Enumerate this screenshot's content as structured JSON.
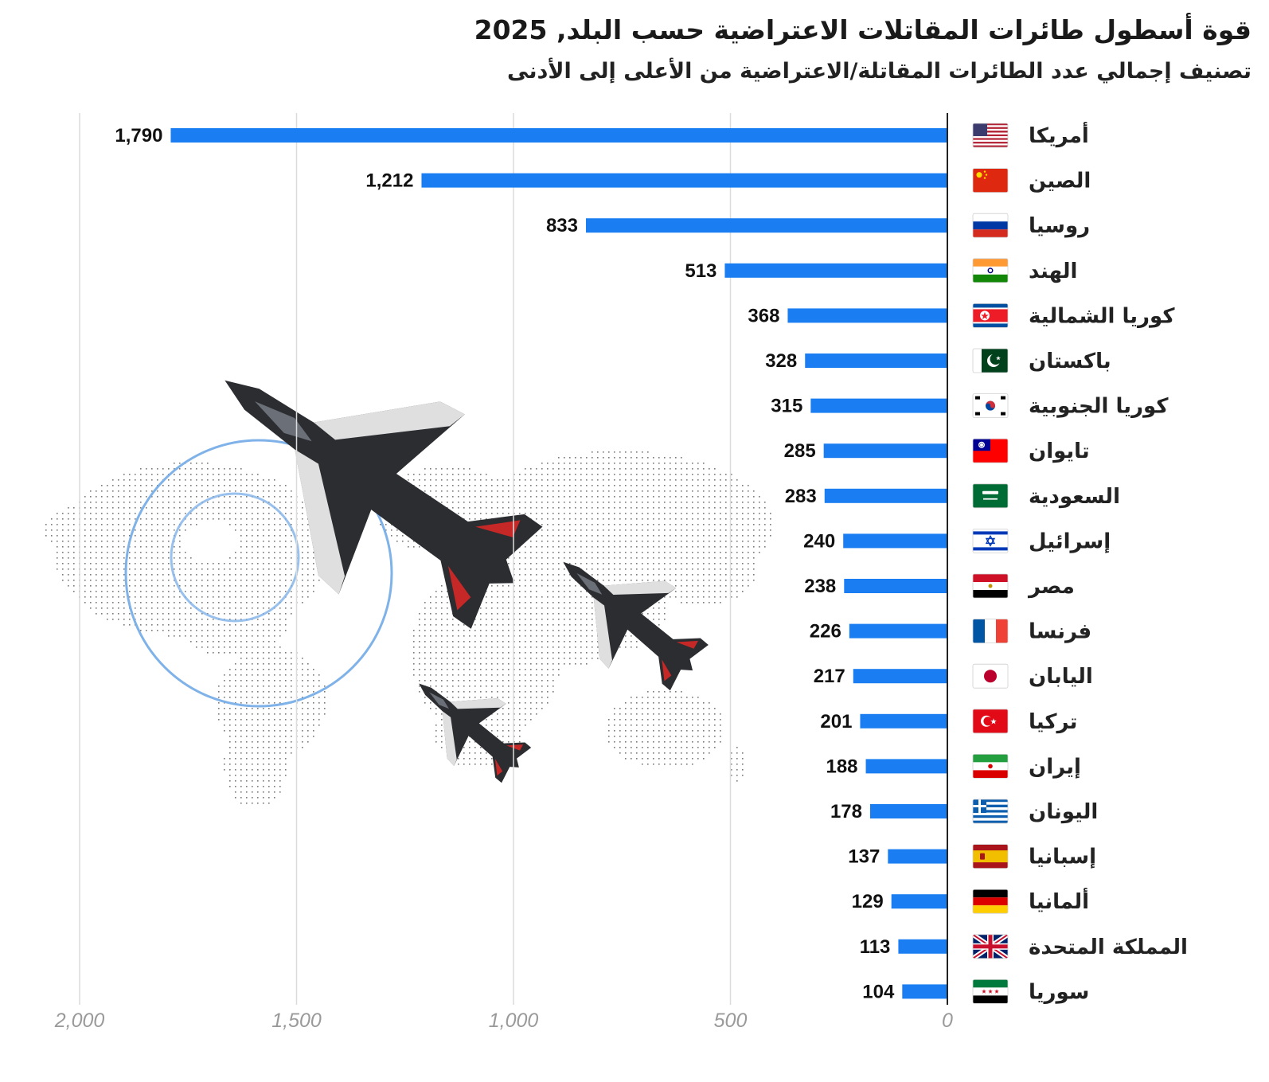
{
  "title": "قوة أسطول طائرات المقاتلات الاعتراضية حسب البلد, 2025",
  "subtitle": "تصنيف إجمالي عدد الطائرات المقاتلة/الاعتراضية من الأعلى إلى الأدنى",
  "colors": {
    "bar": "#1a7ef2",
    "grid": "#dcdcdc",
    "axis": "#222222",
    "map": "#7a7a7a",
    "ring": "#7fb2e8",
    "jet": "#2b2d31"
  },
  "chart_data": {
    "type": "bar",
    "orientation": "horizontal",
    "direction": "right-to-left",
    "title": "قوة أسطول طائرات المقاتلات الاعتراضية حسب البلد, 2025",
    "subtitle": "تصنيف إجمالي عدد الطائرات المقاتلة/الاعتراضية من الأعلى إلى الأدنى",
    "categories": [
      "أمريكا",
      "الصين",
      "روسيا",
      "الهند",
      "كوريا الشمالية",
      "باكستان",
      "كوريا الجنوبية",
      "تايوان",
      "السعودية",
      "إسرائيل",
      "مصر",
      "فرنسا",
      "اليابان",
      "تركيا",
      "إيران",
      "اليونان",
      "إسبانيا",
      "ألمانيا",
      "المملكة المتحدة",
      "سوريا"
    ],
    "values": [
      1790,
      1212,
      833,
      513,
      368,
      328,
      315,
      285,
      283,
      240,
      238,
      226,
      217,
      201,
      188,
      178,
      137,
      129,
      113,
      104
    ],
    "value_labels": [
      "1,790",
      "1,212",
      "833",
      "513",
      "368",
      "328",
      "315",
      "285",
      "283",
      "240",
      "238",
      "226",
      "217",
      "201",
      "188",
      "178",
      "137",
      "129",
      "113",
      "104"
    ],
    "flags": [
      "us",
      "cn",
      "ru",
      "in",
      "kp",
      "pk",
      "kr",
      "tw",
      "sa",
      "il",
      "eg",
      "fr",
      "jp",
      "tr",
      "ir",
      "gr",
      "es",
      "de",
      "gb",
      "sy"
    ],
    "xlim": [
      0,
      2000
    ],
    "xticks": [
      0,
      500,
      1000,
      1500,
      2000
    ],
    "xtick_labels": [
      "0",
      "500",
      "1,000",
      "1,500",
      "2,000"
    ],
    "grid": true,
    "decoration": [
      "dotted-world-map-icon",
      "fighter-jet-icon"
    ]
  }
}
